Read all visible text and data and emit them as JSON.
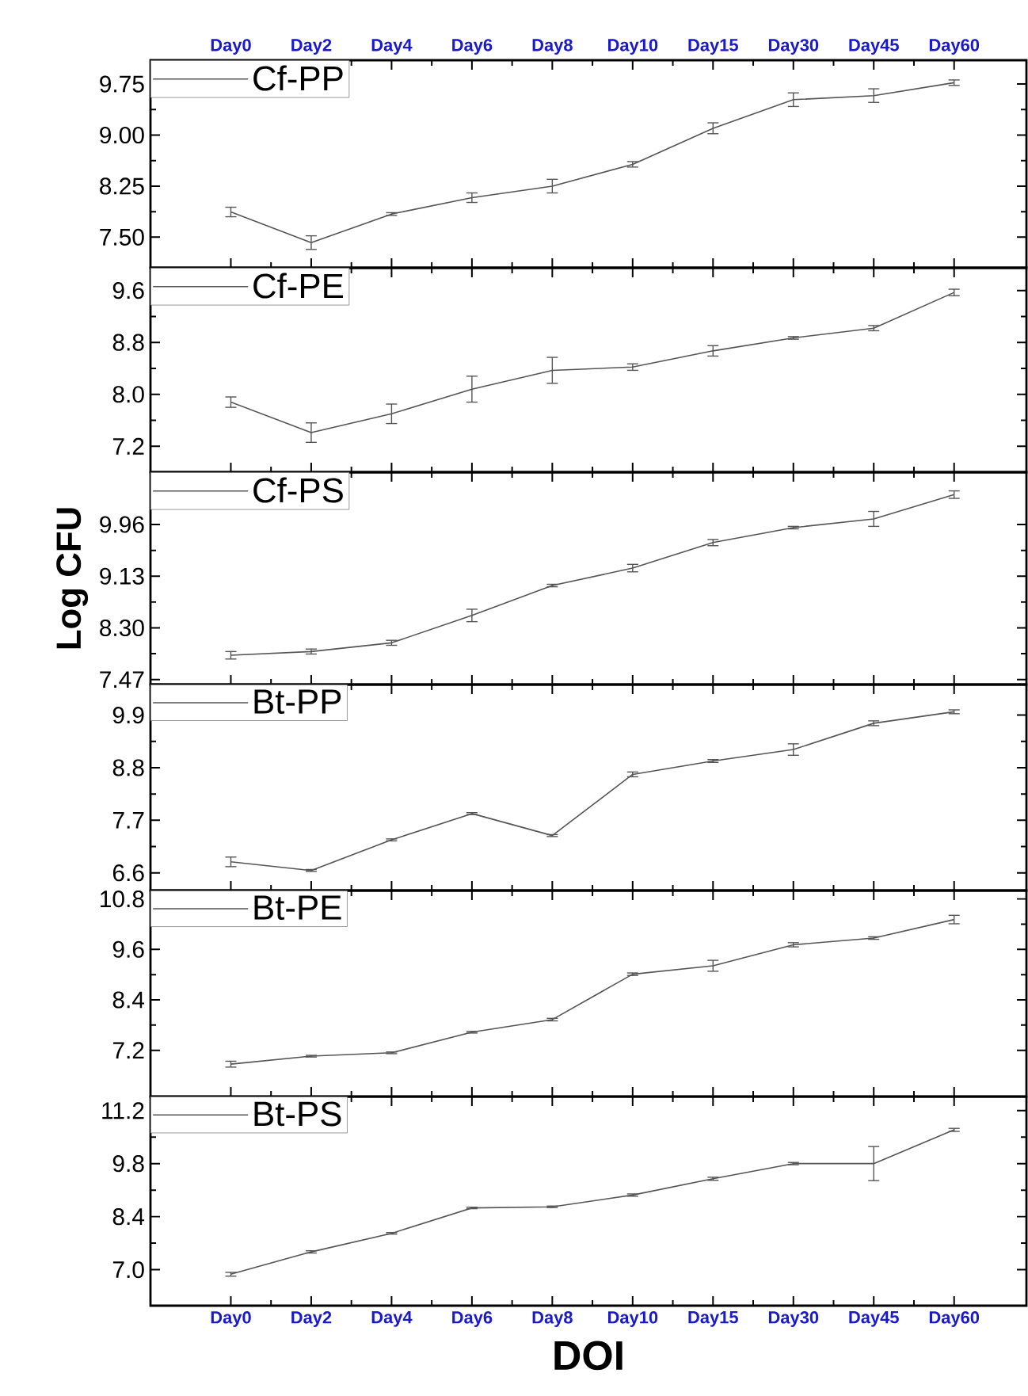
{
  "chart_data": [
    {
      "type": "line",
      "categories": [
        "Day0",
        "Day2",
        "Day4",
        "Day6",
        "Day8",
        "Day10",
        "Day15",
        "Day30",
        "Day45",
        "Day60"
      ],
      "ylim": [
        7.05,
        10.1
      ],
      "yticks": [
        {
          "value": 7.5,
          "label": "7.50"
        },
        8.25,
        {
          "value": 9,
          "label": "9.00"
        },
        9.75
      ],
      "legend": "top left",
      "marker": "none",
      "line_style": "solid",
      "series": [
        {
          "name": "Cf-PP",
          "color": "#555555",
          "values": [
            7.87,
            7.42,
            7.84,
            8.08,
            8.25,
            8.57,
            9.1,
            9.52,
            9.58,
            9.77
          ],
          "errors": [
            0.07,
            0.1,
            0.02,
            0.07,
            0.1,
            0.04,
            0.08,
            0.1,
            0.1,
            0.04
          ]
        }
      ]
    },
    {
      "type": "line",
      "categories": [
        null,
        null,
        null,
        null,
        null,
        null,
        null,
        null,
        null,
        null
      ],
      "tick_labels": "y",
      "ylim": [
        6.8,
        9.95
      ],
      "yticks": [
        7.2,
        {
          "value": 8,
          "label": "8.0"
        },
        8.8,
        9.6
      ],
      "legend": "top left",
      "marker": "none",
      "line_style": "solid",
      "series": [
        {
          "name": "Cf-PE",
          "color": "#555555",
          "values": [
            7.88,
            7.41,
            7.7,
            8.08,
            8.37,
            8.42,
            8.67,
            8.87,
            9.02,
            9.57
          ],
          "errors": [
            0.08,
            0.15,
            0.15,
            0.2,
            0.2,
            0.05,
            0.08,
            0.02,
            0.04,
            0.05
          ]
        }
      ]
    },
    {
      "type": "line",
      "categories": [
        null,
        null,
        null,
        null,
        null,
        null,
        null,
        null,
        null,
        null
      ],
      "tick_labels": "y",
      "ylabel": "Log CFU",
      "ylim": [
        7.39,
        10.8
      ],
      "yticks": [
        7.47,
        {
          "value": 8.3,
          "label": "8.30"
        },
        9.13,
        9.96
      ],
      "legend": "top left",
      "marker": "none",
      "line_style": "solid",
      "series": [
        {
          "name": "Cf-PS",
          "color": "#555555",
          "values": [
            7.86,
            7.92,
            8.06,
            8.5,
            8.98,
            9.26,
            9.67,
            9.91,
            10.05,
            10.44
          ],
          "errors": [
            0.06,
            0.04,
            0.04,
            0.1,
            0.02,
            0.06,
            0.05,
            0.02,
            0.12,
            0.06
          ]
        }
      ]
    },
    {
      "type": "line",
      "categories": [
        null,
        null,
        null,
        null,
        null,
        null,
        null,
        null,
        null,
        null
      ],
      "tick_labels": "y",
      "ylim": [
        6.23,
        10.54
      ],
      "yticks": [
        6.6,
        7.7,
        8.8,
        9.9
      ],
      "legend": "top left",
      "marker": "none",
      "line_style": "solid",
      "series": [
        {
          "name": "Bt-PP",
          "color": "#555555",
          "values": [
            6.83,
            6.65,
            7.29,
            7.84,
            7.38,
            8.66,
            8.94,
            9.18,
            9.73,
            9.97
          ],
          "errors": [
            0.1,
            0.02,
            0.02,
            0.02,
            0.02,
            0.05,
            0.03,
            0.12,
            0.05,
            0.04
          ]
        }
      ]
    },
    {
      "type": "line",
      "categories": [
        null,
        null,
        null,
        null,
        null,
        null,
        null,
        null,
        null,
        null
      ],
      "tick_labels": "y",
      "ylim": [
        6.1,
        11.0
      ],
      "yticks": [
        7.2,
        8.4,
        9.6,
        10.8
      ],
      "legend": "top left",
      "marker": "none",
      "line_style": "solid",
      "series": [
        {
          "name": "Bt-PE",
          "color": "#555555",
          "values": [
            6.87,
            7.06,
            7.14,
            7.63,
            7.93,
            9.01,
            9.21,
            9.71,
            9.87,
            10.31
          ],
          "errors": [
            0.07,
            0.02,
            0.02,
            0.02,
            0.03,
            0.03,
            0.13,
            0.05,
            0.03,
            0.1
          ]
        }
      ]
    },
    {
      "type": "line",
      "categories": [
        "Day0",
        "Day2",
        "Day4",
        "Day6",
        "Day8",
        "Day10",
        "Day15",
        "Day30",
        "Day45",
        "Day60"
      ],
      "xlabel": "DOI",
      "ylim": [
        6.05,
        11.57
      ],
      "yticks": [
        {
          "value": 7,
          "label": "7.0"
        },
        8.4,
        9.8,
        11.2
      ],
      "legend": "top left",
      "marker": "none",
      "line_style": "solid",
      "series": [
        {
          "name": "Bt-PS",
          "color": "#555555",
          "values": [
            6.88,
            7.47,
            7.96,
            8.63,
            8.66,
            8.97,
            9.4,
            9.8,
            9.8,
            10.69
          ],
          "errors": [
            0.05,
            0.03,
            0.02,
            0.02,
            0.02,
            0.03,
            0.04,
            0.03,
            0.45,
            0.04
          ]
        }
      ]
    }
  ]
}
